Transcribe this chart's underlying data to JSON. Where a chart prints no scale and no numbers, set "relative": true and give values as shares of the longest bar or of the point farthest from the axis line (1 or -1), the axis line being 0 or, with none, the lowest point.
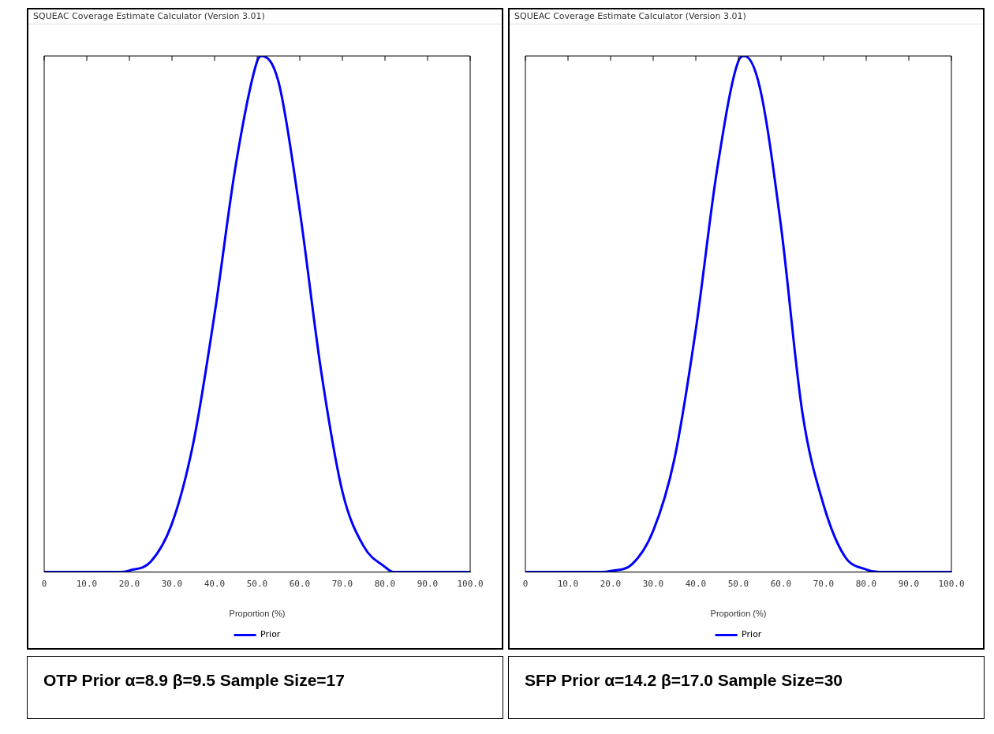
{
  "chart_data": [
    {
      "type": "line",
      "title": "SQUEAC Coverage Estimate Calculator (Version 3.01)",
      "xlabel": "Proportion (%)",
      "relative": true,
      "legend": "bottom",
      "marker": "none",
      "line_style": "solid",
      "grid": false,
      "x": [
        0,
        10,
        18,
        20,
        25,
        30,
        35,
        40,
        45,
        50,
        51,
        55,
        60,
        65,
        70,
        75,
        80,
        82,
        90,
        100
      ],
      "series": [
        {
          "name": "Prior",
          "color": "#0000ff",
          "values": [
            0,
            0,
            0,
            0.003,
            0.02,
            0.094,
            0.25,
            0.5,
            0.79,
            0.99,
            1,
            0.95,
            0.7,
            0.39,
            0.156,
            0.05,
            0.01,
            0,
            0,
            0
          ]
        }
      ],
      "xlim": [
        0,
        100
      ],
      "xticks": [
        0,
        {
          "value": 10,
          "label": "10.0"
        },
        {
          "value": 20,
          "label": "20.0"
        },
        {
          "value": 30,
          "label": "30.0"
        },
        {
          "value": 40,
          "label": "40.0"
        },
        {
          "value": 50,
          "label": "50.0"
        },
        {
          "value": 60,
          "label": "60.0"
        },
        {
          "value": 70,
          "label": "70.0"
        },
        {
          "value": 80,
          "label": "80.0"
        },
        {
          "value": 90,
          "label": "90.0"
        },
        {
          "value": 100,
          "label": "100.0"
        }
      ],
      "annotations": [
        "OTP Prior α=8.9 β=9.5 Sample Size=17"
      ]
    },
    {
      "type": "line",
      "title": "SQUEAC Coverage Estimate Calculator (Version 3.01)",
      "xlabel": "Proportion (%)",
      "relative": true,
      "legend": "bottom",
      "marker": "none",
      "line_style": "solid",
      "grid": false,
      "x": [
        0,
        10,
        18,
        20,
        25,
        30,
        35,
        40,
        45,
        50,
        51.4,
        55,
        60,
        65,
        70,
        75,
        80,
        83,
        90,
        100
      ],
      "series": [
        {
          "name": "Prior",
          "color": "#0000ff",
          "values": [
            0,
            0,
            0,
            0.002,
            0.015,
            0.08,
            0.22,
            0.47,
            0.78,
            0.99,
            1,
            0.94,
            0.67,
            0.31,
            0.13,
            0.03,
            0.005,
            0,
            0,
            0
          ]
        }
      ],
      "xlim": [
        0,
        100
      ],
      "xticks": [
        0,
        {
          "value": 10,
          "label": "10.0"
        },
        {
          "value": 20,
          "label": "20.0"
        },
        {
          "value": 30,
          "label": "30.0"
        },
        {
          "value": 40,
          "label": "40.0"
        },
        {
          "value": 50,
          "label": "50.0"
        },
        {
          "value": 60,
          "label": "60.0"
        },
        {
          "value": 70,
          "label": "70.0"
        },
        {
          "value": 80,
          "label": "80.0"
        },
        {
          "value": 90,
          "label": "90.0"
        },
        {
          "value": 100,
          "label": "100.0"
        }
      ],
      "annotations": [
        "SFP Prior α=14.2 β=17.0 Sample Size=30"
      ]
    }
  ]
}
